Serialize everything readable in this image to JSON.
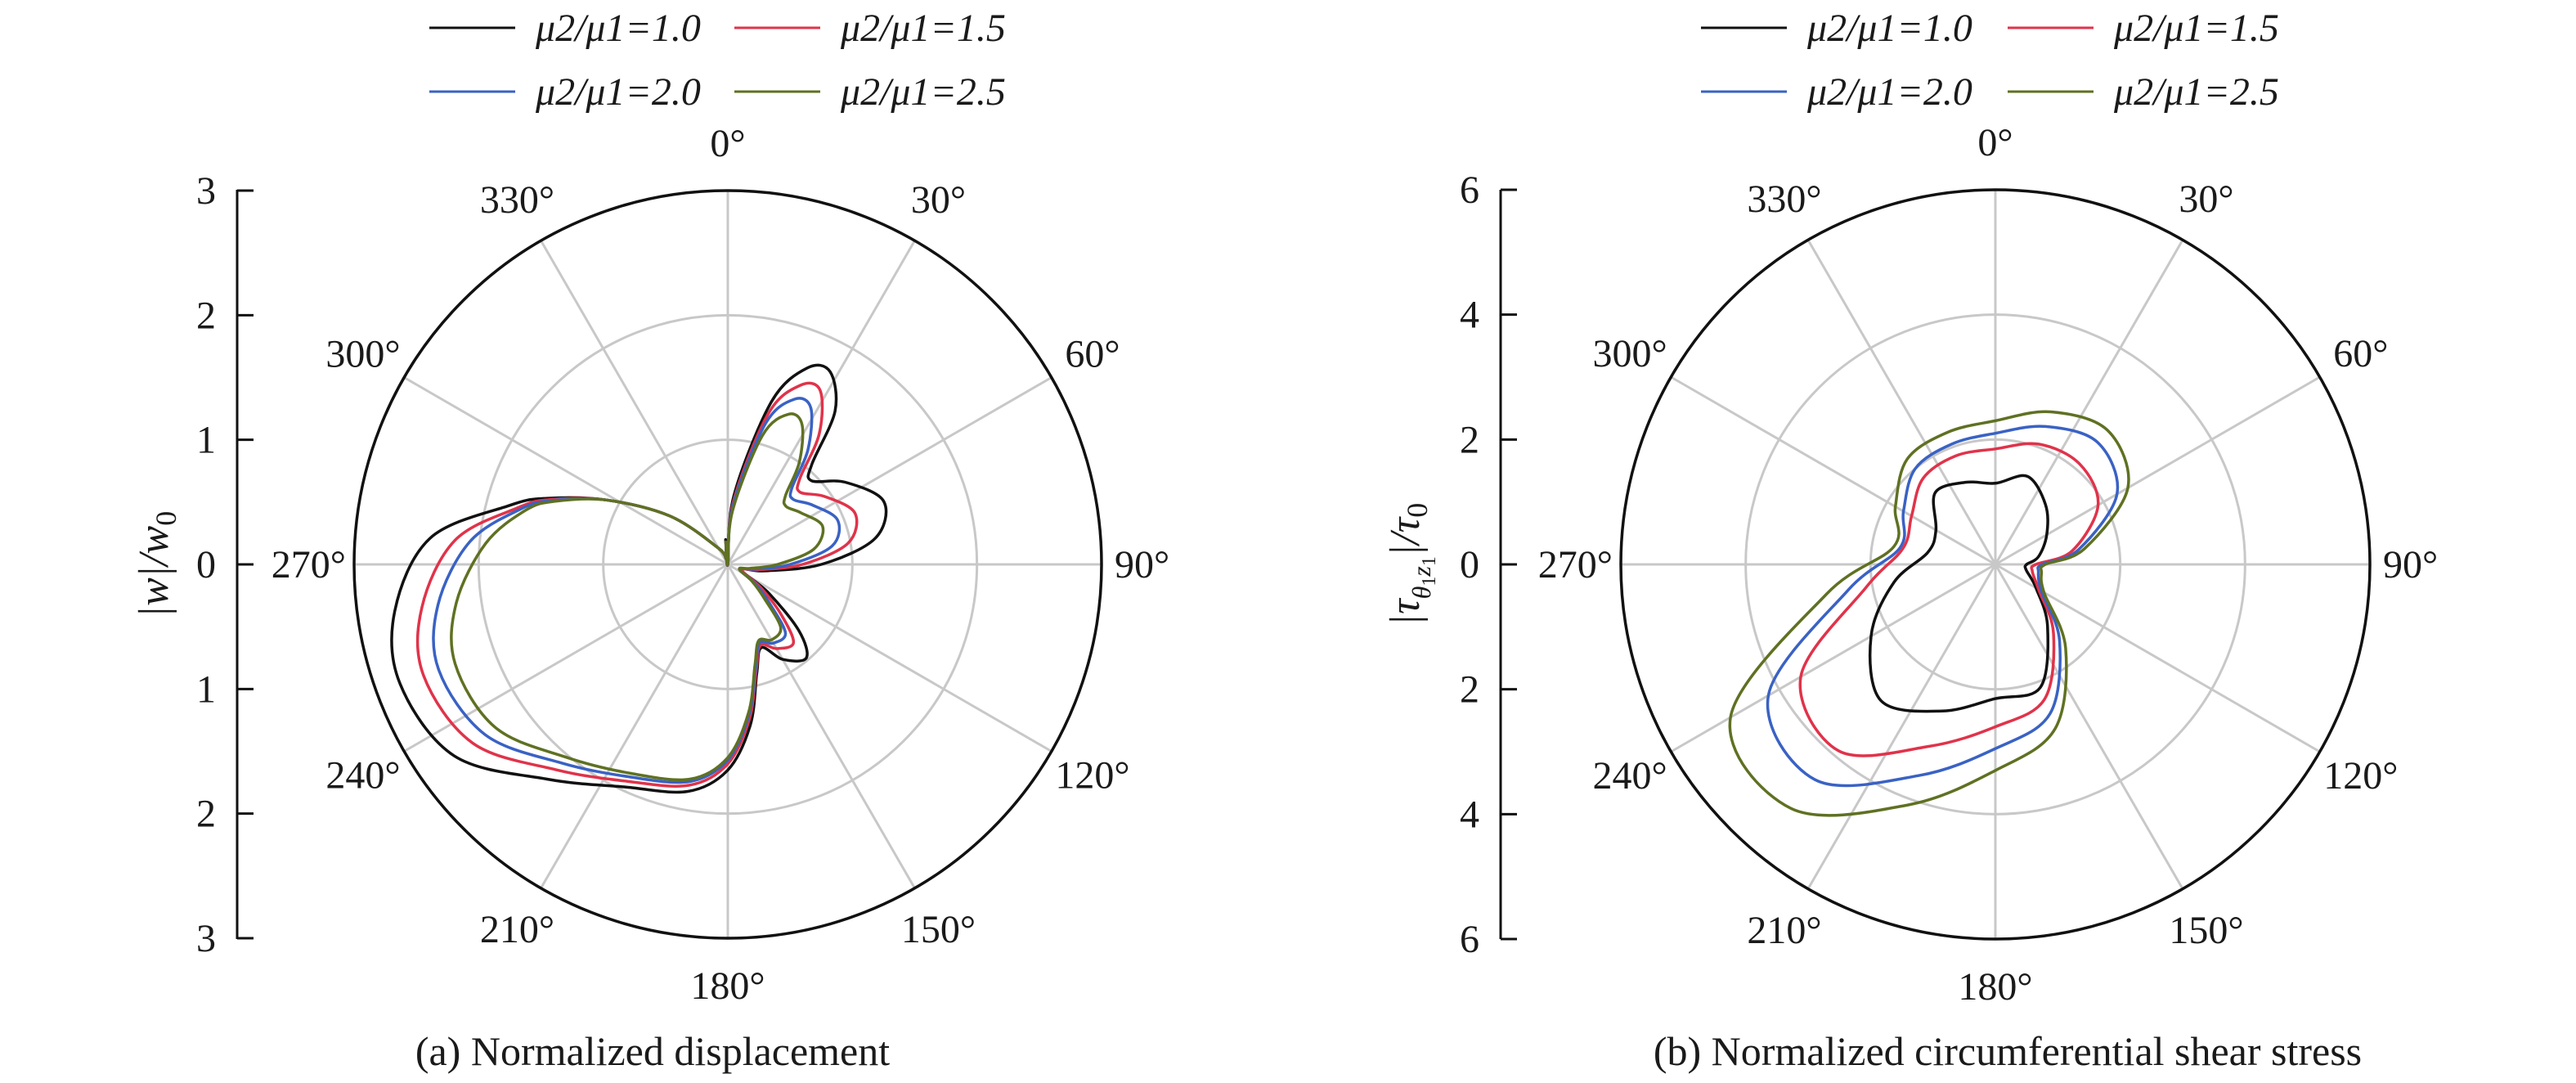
{
  "colors": {
    "black": "#111111",
    "red": "#e0334a",
    "blue": "#3a62c4",
    "olive": "#5f7122",
    "grid": "#c8c8c8",
    "axis": "#111111"
  },
  "chart_data": [
    {
      "type": "polar-line",
      "caption": "(a) Normalized displacement",
      "ylabel": "|w|/w0",
      "radial_ticks": [
        3,
        2,
        1,
        0,
        1,
        2,
        3
      ],
      "rlim": [
        0,
        3
      ],
      "grid_rings": [
        1,
        2,
        3
      ],
      "angle_ticks": [
        "0°",
        "30°",
        "60°",
        "90°",
        "120°",
        "150°",
        "180°",
        "210°",
        "240°",
        "270°",
        "300°",
        "330°"
      ],
      "legend_placement": "top",
      "series": [
        {
          "name": "μ2/μ1=1.0",
          "color": "#111111",
          "points": [
            [
              0,
              0
            ],
            [
              5,
              0.55
            ],
            [
              15,
              1.35
            ],
            [
              22,
              1.7
            ],
            [
              28,
              1.75
            ],
            [
              35,
              1.5
            ],
            [
              40,
              1.05
            ],
            [
              45,
              0.95
            ],
            [
              55,
              1.15
            ],
            [
              68,
              1.35
            ],
            [
              80,
              1.2
            ],
            [
              90,
              0.75
            ],
            [
              100,
              0.3
            ],
            [
              112,
              0.12
            ],
            [
              125,
              0.4
            ],
            [
              133,
              0.78
            ],
            [
              140,
              0.98
            ],
            [
              150,
              0.88
            ],
            [
              158,
              0.72
            ],
            [
              165,
              0.9
            ],
            [
              172,
              1.3
            ],
            [
              180,
              1.65
            ],
            [
              190,
              1.85
            ],
            [
              205,
              1.97
            ],
            [
              220,
              2.25
            ],
            [
              235,
              2.68
            ],
            [
              250,
              2.8
            ],
            [
              262,
              2.7
            ],
            [
              275,
              2.4
            ],
            [
              285,
              1.82
            ],
            [
              290,
              1.55
            ],
            [
              298,
              1.1
            ],
            [
              310,
              0.6
            ],
            [
              330,
              0.15
            ],
            [
              345,
              0.05
            ],
            [
              355,
              0.2
            ],
            [
              360,
              0
            ]
          ]
        },
        {
          "name": "μ2/μ1=1.5",
          "color": "#e0334a",
          "points": [
            [
              0,
              0
            ],
            [
              5,
              0.5
            ],
            [
              15,
              1.25
            ],
            [
              22,
              1.55
            ],
            [
              28,
              1.58
            ],
            [
              35,
              1.28
            ],
            [
              40,
              0.9
            ],
            [
              45,
              0.82
            ],
            [
              55,
              0.95
            ],
            [
              68,
              1.1
            ],
            [
              80,
              0.98
            ],
            [
              90,
              0.6
            ],
            [
              100,
              0.25
            ],
            [
              112,
              0.12
            ],
            [
              125,
              0.32
            ],
            [
              133,
              0.58
            ],
            [
              140,
              0.82
            ],
            [
              150,
              0.78
            ],
            [
              158,
              0.7
            ],
            [
              165,
              0.88
            ],
            [
              172,
              1.25
            ],
            [
              180,
              1.6
            ],
            [
              190,
              1.8
            ],
            [
              205,
              1.92
            ],
            [
              220,
              2.15
            ],
            [
              235,
              2.5
            ],
            [
              250,
              2.6
            ],
            [
              262,
              2.48
            ],
            [
              275,
              2.2
            ],
            [
              285,
              1.75
            ],
            [
              290,
              1.52
            ],
            [
              298,
              1.1
            ],
            [
              310,
              0.6
            ],
            [
              330,
              0.15
            ],
            [
              345,
              0.05
            ],
            [
              355,
              0.18
            ],
            [
              360,
              0
            ]
          ]
        },
        {
          "name": "μ2/μ1=2.0",
          "color": "#3a62c4",
          "points": [
            [
              0,
              0
            ],
            [
              5,
              0.47
            ],
            [
              15,
              1.17
            ],
            [
              22,
              1.43
            ],
            [
              28,
              1.42
            ],
            [
              35,
              1.12
            ],
            [
              40,
              0.8
            ],
            [
              45,
              0.74
            ],
            [
              55,
              0.83
            ],
            [
              68,
              0.95
            ],
            [
              80,
              0.85
            ],
            [
              90,
              0.5
            ],
            [
              100,
              0.22
            ],
            [
              112,
              0.1
            ],
            [
              125,
              0.27
            ],
            [
              133,
              0.46
            ],
            [
              140,
              0.72
            ],
            [
              150,
              0.73
            ],
            [
              158,
              0.68
            ],
            [
              165,
              0.86
            ],
            [
              172,
              1.22
            ],
            [
              180,
              1.57
            ],
            [
              190,
              1.77
            ],
            [
              205,
              1.88
            ],
            [
              220,
              2.08
            ],
            [
              235,
              2.38
            ],
            [
              250,
              2.47
            ],
            [
              262,
              2.35
            ],
            [
              275,
              2.08
            ],
            [
              285,
              1.72
            ],
            [
              290,
              1.5
            ],
            [
              298,
              1.1
            ],
            [
              310,
              0.6
            ],
            [
              330,
              0.15
            ],
            [
              345,
              0.05
            ],
            [
              355,
              0.18
            ],
            [
              360,
              0
            ]
          ]
        },
        {
          "name": "μ2/μ1=2.5",
          "color": "#5f7122",
          "points": [
            [
              0,
              0
            ],
            [
              5,
              0.43
            ],
            [
              15,
              1.07
            ],
            [
              22,
              1.3
            ],
            [
              28,
              1.27
            ],
            [
              35,
              1.0
            ],
            [
              40,
              0.72
            ],
            [
              45,
              0.66
            ],
            [
              55,
              0.72
            ],
            [
              68,
              0.82
            ],
            [
              80,
              0.7
            ],
            [
              90,
              0.4
            ],
            [
              100,
              0.18
            ],
            [
              112,
              0.1
            ],
            [
              125,
              0.24
            ],
            [
              133,
              0.4
            ],
            [
              140,
              0.66
            ],
            [
              150,
              0.7
            ],
            [
              158,
              0.66
            ],
            [
              165,
              0.84
            ],
            [
              172,
              1.2
            ],
            [
              180,
              1.55
            ],
            [
              190,
              1.75
            ],
            [
              205,
              1.85
            ],
            [
              220,
              2.02
            ],
            [
              235,
              2.28
            ],
            [
              250,
              2.33
            ],
            [
              262,
              2.2
            ],
            [
              275,
              1.95
            ],
            [
              285,
              1.68
            ],
            [
              290,
              1.48
            ],
            [
              298,
              1.1
            ],
            [
              310,
              0.6
            ],
            [
              330,
              0.15
            ],
            [
              345,
              0.05
            ],
            [
              355,
              0.18
            ],
            [
              360,
              0
            ]
          ]
        }
      ]
    },
    {
      "type": "polar-line",
      "caption": "(b) Normalized circumferential shear stress",
      "ylabel": "|τθ1z1|/τ0",
      "radial_ticks": [
        6,
        4,
        2,
        0,
        2,
        4,
        6
      ],
      "rlim": [
        0,
        6
      ],
      "grid_rings": [
        2,
        4,
        6
      ],
      "angle_ticks": [
        "0°",
        "30°",
        "60°",
        "90°",
        "120°",
        "150°",
        "180°",
        "210°",
        "240°",
        "270°",
        "300°",
        "330°"
      ],
      "legend_placement": "top",
      "series": [
        {
          "name": "μ2/μ1=1.0",
          "color": "#111111",
          "points": [
            [
              0,
              1.3
            ],
            [
              20,
              1.5
            ],
            [
              40,
              1.25
            ],
            [
              60,
              0.95
            ],
            [
              80,
              0.7
            ],
            [
              90,
              0.5
            ],
            [
              100,
              0.5
            ],
            [
              120,
              0.75
            ],
            [
              140,
              1.3
            ],
            [
              160,
              2.1
            ],
            [
              180,
              2.15
            ],
            [
              200,
              2.5
            ],
            [
              220,
              2.85
            ],
            [
              240,
              2.3
            ],
            [
              260,
              1.65
            ],
            [
              280,
              1.1
            ],
            [
              300,
              1.1
            ],
            [
              320,
              1.5
            ],
            [
              340,
              1.4
            ],
            [
              360,
              1.3
            ]
          ]
        },
        {
          "name": "μ2/μ1=1.5",
          "color": "#e0334a",
          "points": [
            [
              0,
              1.85
            ],
            [
              20,
              2.05
            ],
            [
              40,
              2.1
            ],
            [
              60,
              1.9
            ],
            [
              80,
              1.25
            ],
            [
              90,
              0.65
            ],
            [
              100,
              0.6
            ],
            [
              120,
              0.8
            ],
            [
              140,
              1.45
            ],
            [
              160,
              2.3
            ],
            [
              180,
              2.6
            ],
            [
              200,
              3.1
            ],
            [
              220,
              3.9
            ],
            [
              240,
              3.6
            ],
            [
              260,
              2.1
            ],
            [
              280,
              1.5
            ],
            [
              300,
              1.55
            ],
            [
              320,
              1.8
            ],
            [
              340,
              1.85
            ],
            [
              360,
              1.85
            ]
          ]
        },
        {
          "name": "μ2/μ1=2.0",
          "color": "#3a62c4",
          "points": [
            [
              0,
              2.1
            ],
            [
              20,
              2.35
            ],
            [
              40,
              2.55
            ],
            [
              60,
              2.25
            ],
            [
              80,
              1.35
            ],
            [
              90,
              0.75
            ],
            [
              100,
              0.7
            ],
            [
              120,
              0.85
            ],
            [
              140,
              1.6
            ],
            [
              160,
              2.55
            ],
            [
              180,
              2.95
            ],
            [
              200,
              3.6
            ],
            [
              220,
              4.5
            ],
            [
              240,
              4.2
            ],
            [
              260,
              2.4
            ],
            [
              280,
              1.55
            ],
            [
              300,
              1.7
            ],
            [
              320,
              2.0
            ],
            [
              340,
              2.05
            ],
            [
              360,
              2.1
            ]
          ]
        },
        {
          "name": "μ2/μ1=2.5",
          "color": "#5f7122",
          "points": [
            [
              0,
              2.3
            ],
            [
              20,
              2.6
            ],
            [
              40,
              2.8
            ],
            [
              60,
              2.45
            ],
            [
              80,
              1.45
            ],
            [
              90,
              0.8
            ],
            [
              100,
              0.75
            ],
            [
              120,
              0.9
            ],
            [
              140,
              1.75
            ],
            [
              160,
              2.8
            ],
            [
              180,
              3.3
            ],
            [
              200,
              4.1
            ],
            [
              220,
              5.1
            ],
            [
              240,
              4.9
            ],
            [
              260,
              2.75
            ],
            [
              280,
              1.65
            ],
            [
              300,
              1.85
            ],
            [
              320,
              2.2
            ],
            [
              340,
              2.25
            ],
            [
              360,
              2.3
            ]
          ]
        }
      ]
    }
  ]
}
